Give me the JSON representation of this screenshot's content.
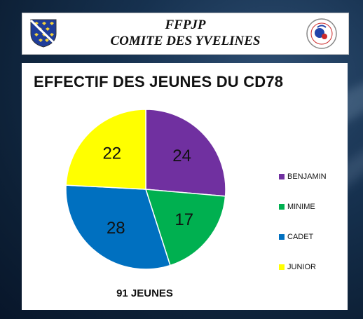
{
  "header": {
    "title_line1": "FFPJP",
    "title_line2": "COMITE DES YVELINES"
  },
  "logos": {
    "left": "yvelines-coat-of-arms",
    "right": "ffpjp-federation-emblem"
  },
  "chart_data": {
    "type": "pie",
    "title": "EFFECTIF DES JEUNES DU CD78",
    "categories": [
      "BENJAMIN",
      "MINIME",
      "CADET",
      "JUNIOR"
    ],
    "values": [
      24,
      17,
      28,
      22
    ],
    "colors": [
      "#7030a0",
      "#00b050",
      "#0070c0",
      "#ffff00"
    ],
    "data_labels": [
      "24",
      "17",
      "28",
      "22"
    ],
    "start_angle": "12 o'clock, clockwise",
    "legend_position": "right"
  },
  "footer": {
    "total_label": "91 JEUNES"
  }
}
